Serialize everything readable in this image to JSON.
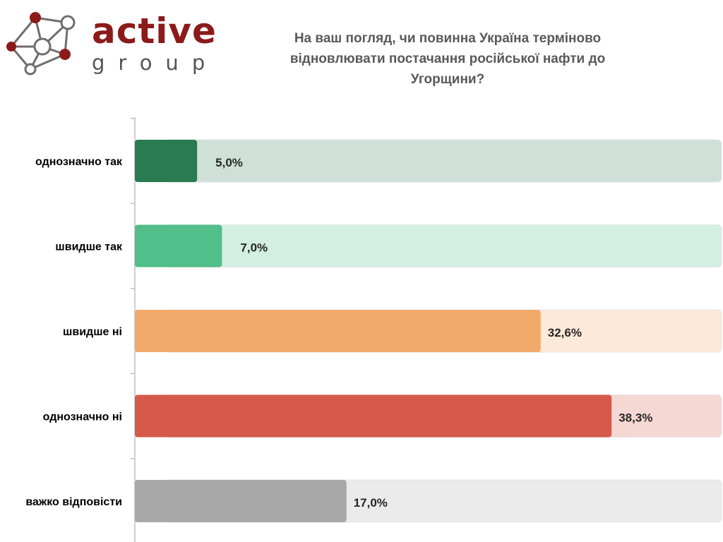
{
  "logo": {
    "main_text": "active",
    "sub_text": "group",
    "colors": {
      "dark_red": "#8b1a1a",
      "gray": "#6b6b6b"
    }
  },
  "title": "На ваш погляд, чи повинна Україна терміново відновлювати постачання російської нафти до Угорщини?",
  "chart_data": {
    "type": "bar",
    "orientation": "horizontal",
    "title": "На ваш погляд, чи повинна Україна терміново відновлювати постачання російської нафти до Угорщини?",
    "categories": [
      "однозначно так",
      "швидше так",
      "швидше ні",
      "однозначно ні",
      "важко відповісти"
    ],
    "values": [
      5.0,
      7.0,
      32.6,
      38.3,
      17.0
    ],
    "value_labels": [
      "5,0%",
      "7,0%",
      "32,6%",
      "38,3%",
      "17,0%"
    ],
    "unit": "%",
    "xlim": [
      0,
      45
    ],
    "colors": [
      "#2a7a52",
      "#52be8a",
      "#f2aa6a",
      "#d55a4a",
      "#a8a8a8"
    ],
    "track_colors": [
      "#cfe0d8",
      "#d3efe2",
      "#fce9da",
      "#f5d7d3",
      "#ebebeb"
    ],
    "grid": false,
    "legend": "none"
  }
}
